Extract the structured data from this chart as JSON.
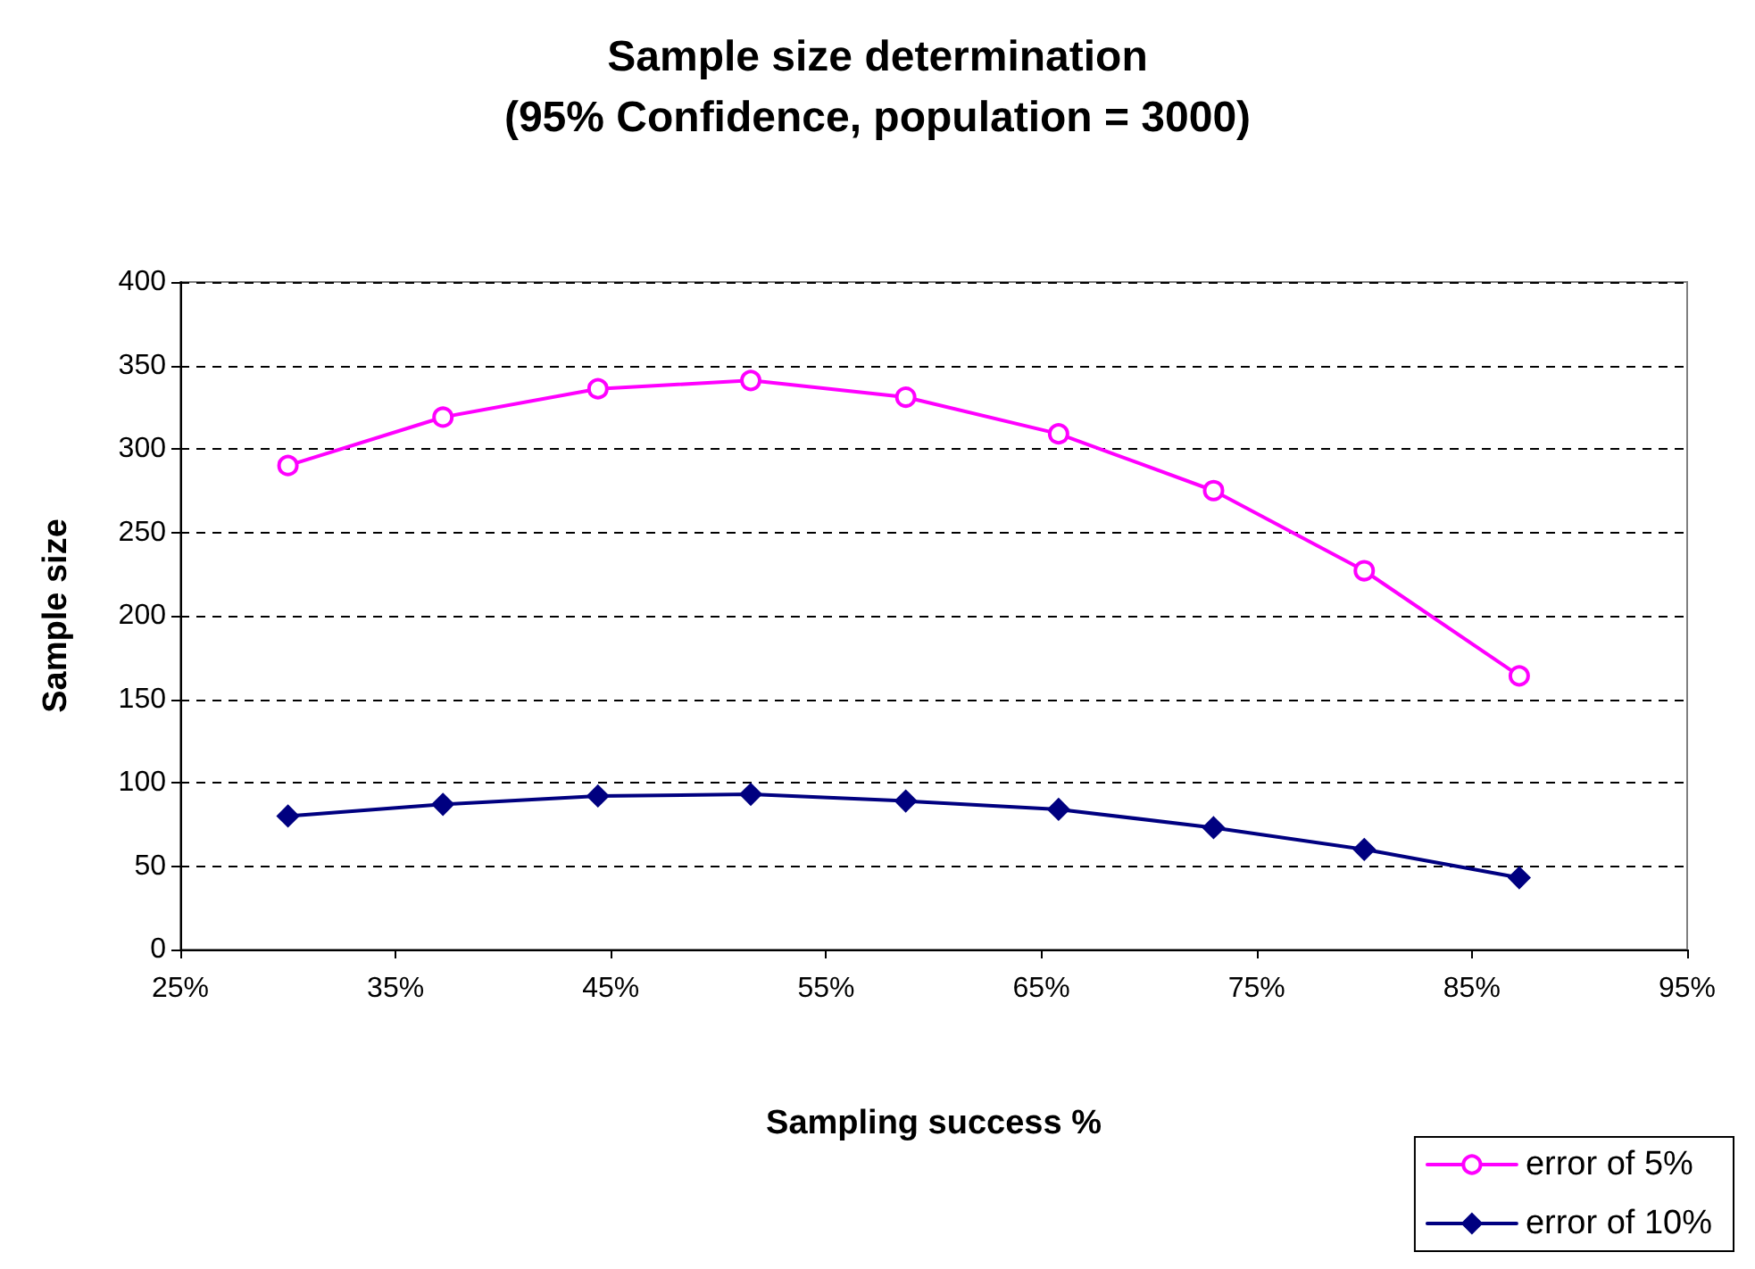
{
  "chart_data": {
    "type": "line",
    "title": "Sample size determination\n(95% Confidence, population = 3000)",
    "xlabel": "Sampling success %",
    "ylabel": "Sample size",
    "x": [
      30,
      37.2,
      44.4,
      51.5,
      58.7,
      65.8,
      73,
      80,
      87.2
    ],
    "series": [
      {
        "name": "error of 5%",
        "color": "#ff00ff",
        "marker": "circle",
        "values": [
          290,
          319,
          336,
          341,
          331,
          309,
          275,
          227,
          164
        ]
      },
      {
        "name": "error of 10%",
        "color": "#000080",
        "marker": "diamond",
        "values": [
          80,
          87,
          92,
          93,
          89,
          84,
          73,
          60,
          43
        ]
      }
    ],
    "xlim": [
      25,
      95
    ],
    "xticks": [
      {
        "value": 25,
        "label": "25%"
      },
      {
        "value": 35,
        "label": "35%"
      },
      {
        "value": 45,
        "label": "45%"
      },
      {
        "value": 55,
        "label": "55%"
      },
      {
        "value": 65,
        "label": "65%"
      },
      {
        "value": 75,
        "label": "75%"
      },
      {
        "value": 85,
        "label": "85%"
      },
      {
        "value": 95,
        "label": "95%"
      }
    ],
    "ylim": [
      0,
      400
    ],
    "yticks": [
      0,
      50,
      100,
      150,
      200,
      250,
      300,
      350,
      400
    ],
    "grid": "y",
    "legend": "bottom right",
    "line_style": "solid"
  }
}
